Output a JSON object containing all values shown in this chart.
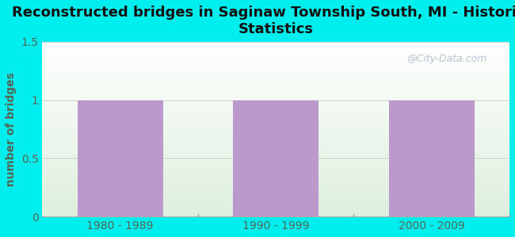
{
  "title": "Reconstructed bridges in Saginaw Township South, MI - Historical\nStatistics",
  "categories": [
    "1980 - 1989",
    "1990 - 1999",
    "2000 - 2009"
  ],
  "values": [
    1,
    1,
    1
  ],
  "bar_color": "#bb99cc",
  "ylabel": "number of bridges",
  "ylim": [
    0,
    1.5
  ],
  "yticks": [
    0,
    0.5,
    1,
    1.5
  ],
  "background_outer": "#00eeee",
  "background_plot_top": "#ffffff",
  "background_plot_bottom": "#ddeedd",
  "title_fontsize": 13,
  "axis_label_color": "#556655",
  "tick_label_color": "#556655",
  "watermark": "@City-Data.com"
}
